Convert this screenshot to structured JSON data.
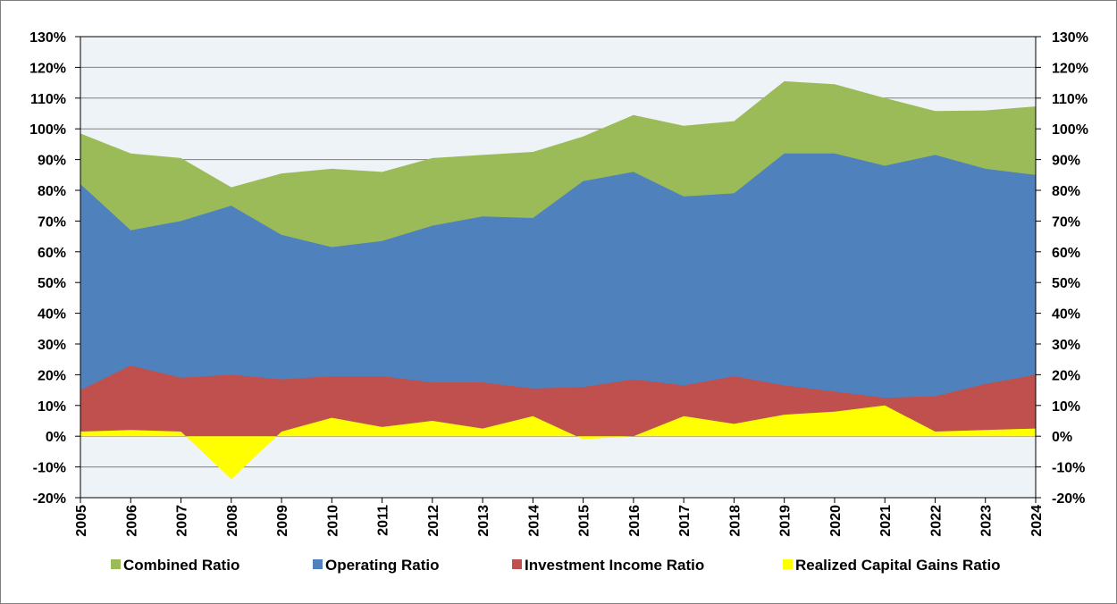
{
  "chart_data": {
    "type": "area",
    "x": [
      "2005",
      "2006",
      "2007",
      "2008",
      "2009",
      "2010",
      "2011",
      "2012",
      "2013",
      "2014",
      "2015",
      "2016",
      "2017",
      "2018",
      "2019",
      "2020",
      "2021",
      "2022",
      "2023",
      "2024"
    ],
    "ylim": [
      -20,
      130
    ],
    "y_ticks": [
      "-20%",
      "-10%",
      "0%",
      "10%",
      "20%",
      "30%",
      "40%",
      "50%",
      "60%",
      "70%",
      "80%",
      "90%",
      "100%",
      "110%",
      "120%",
      "130%"
    ],
    "secondary_axis": true,
    "grid": true,
    "legend": "bottom",
    "series": [
      {
        "name": "Combined Ratio",
        "color": "#9bbb59",
        "values": [
          98.5,
          92,
          90.5,
          81,
          85.5,
          87,
          86,
          90.5,
          91.5,
          92.5,
          97.5,
          104.5,
          101,
          102.5,
          115.5,
          114.5,
          110,
          105.8,
          106,
          107.3
        ]
      },
      {
        "name": "Operating Ratio",
        "color": "#4f81bd",
        "values": [
          82,
          67,
          70,
          75,
          65.5,
          61.5,
          63.5,
          68.5,
          71.5,
          71,
          83,
          86,
          78,
          79,
          92,
          92,
          88,
          91.5,
          87,
          85
        ]
      },
      {
        "name": "Investment Income Ratio",
        "color": "#c0504d",
        "values": [
          15,
          23,
          19,
          20,
          18.5,
          19.5,
          19.5,
          17.5,
          17.5,
          15.5,
          16,
          18.5,
          16.5,
          19.5,
          16.5,
          14.5,
          12.5,
          13,
          17,
          20
        ]
      },
      {
        "name": "Realized Capital Gains Ratio",
        "color": "#ffff00",
        "values": [
          1.5,
          2,
          1.5,
          -14,
          1.5,
          6,
          3,
          5,
          2.5,
          6.5,
          -1,
          0,
          6.5,
          4,
          7,
          8,
          10,
          1.5,
          2,
          2.5
        ]
      }
    ]
  }
}
